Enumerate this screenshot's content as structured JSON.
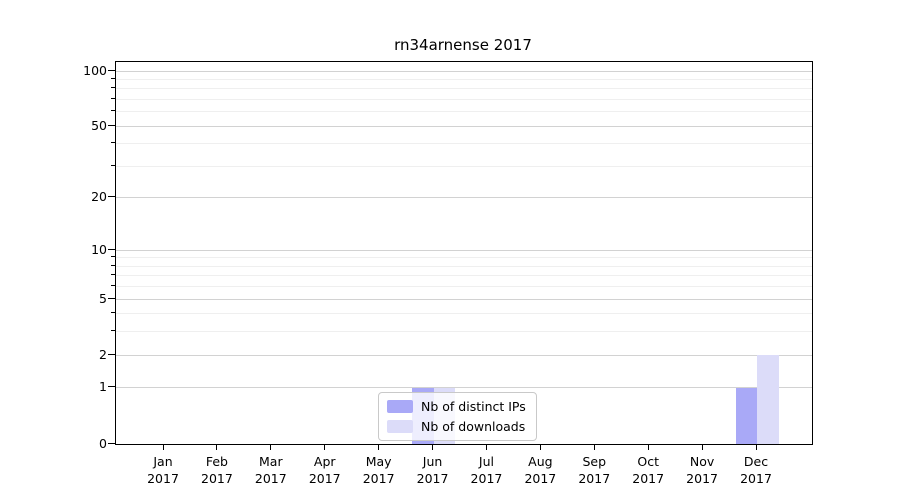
{
  "chart_data": {
    "type": "bar",
    "title": "rn34arnense 2017",
    "categories": [
      "Jan 2017",
      "Feb 2017",
      "Mar 2017",
      "Apr 2017",
      "May 2017",
      "Jun 2017",
      "Jul 2017",
      "Aug 2017",
      "Sep 2017",
      "Oct 2017",
      "Nov 2017",
      "Dec 2017"
    ],
    "x_tick_months": [
      "Jan",
      "Feb",
      "Mar",
      "Apr",
      "May",
      "Jun",
      "Jul",
      "Aug",
      "Sep",
      "Oct",
      "Nov",
      "Dec"
    ],
    "x_tick_year": "2017",
    "series": [
      {
        "name": "Nb of distinct IPs",
        "color": "#a9a9f7",
        "values": [
          0,
          0,
          0,
          0,
          0,
          1,
          0,
          0,
          0,
          0,
          0,
          1
        ]
      },
      {
        "name": "Nb of downloads",
        "color": "#dcdcf9",
        "values": [
          0,
          0,
          0,
          0,
          0,
          1,
          0,
          0,
          0,
          0,
          0,
          2
        ]
      }
    ],
    "yscale": "log10(value+1)",
    "ylim": [
      0,
      112
    ],
    "y_major_ticks": [
      0,
      1,
      2,
      5,
      10,
      20,
      50,
      100
    ],
    "y_minor_gridlines": [
      3,
      4,
      6,
      7,
      8,
      9,
      30,
      40,
      60,
      70,
      80,
      90
    ],
    "grid": true,
    "legend_position": "lower-center-inside",
    "colors": {
      "grid_major": "#d2d2d2",
      "grid_minor": "#efefef",
      "spine": "#000000",
      "legend_border": "#c9c9c9"
    }
  }
}
